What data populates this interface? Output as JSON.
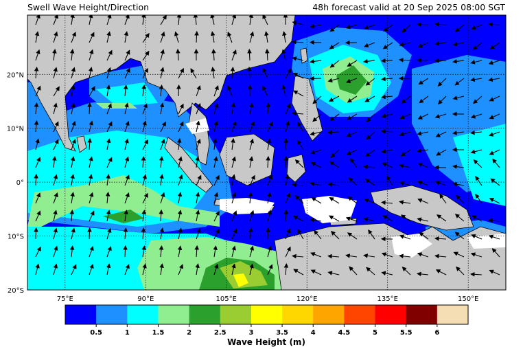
{
  "header": {
    "title": "Swell Wave Height/Direction",
    "valid": "48h forecast valid at 20 Sep 2025 08:00 SGT"
  },
  "map": {
    "lat_labels": [
      "20°N",
      "10°N",
      "0°",
      "10°S",
      "20°S"
    ],
    "lat_values": [
      20,
      10,
      0,
      -10,
      -20
    ],
    "lon_labels": [
      "75°E",
      "90°E",
      "105°E",
      "120°E",
      "135°E",
      "150°E"
    ],
    "lon_values": [
      75,
      90,
      105,
      120,
      135,
      150
    ],
    "lon_range": [
      68,
      157
    ],
    "lat_range": [
      -20,
      31
    ],
    "land_color": "#c8c8c8",
    "ocean_color": "#0000ff"
  },
  "colorbar": {
    "title": "Wave Height (m)",
    "ticks": [
      "0.5",
      "1",
      "1.5",
      "2",
      "2.5",
      "3",
      "3.5",
      "4",
      "4.5",
      "5",
      "5.5",
      "6"
    ],
    "colors": [
      "#0000ff",
      "#1e90ff",
      "#00ffff",
      "#90ee90",
      "#2ca02c",
      "#9acd32",
      "#ffff00",
      "#ffd700",
      "#ffa500",
      "#ff4500",
      "#ff0000",
      "#800000",
      "#f5deb3"
    ]
  }
}
